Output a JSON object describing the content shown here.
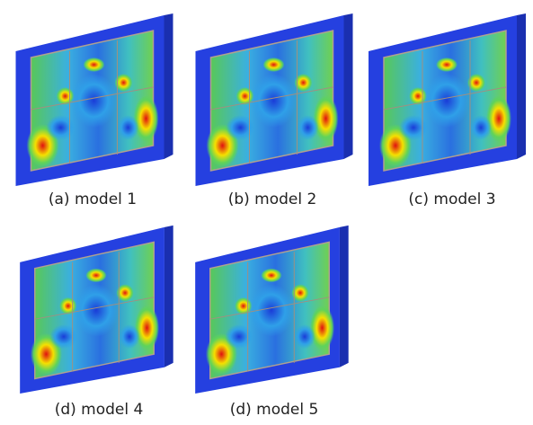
{
  "figures": [
    {
      "caption": "(a) model 1"
    },
    {
      "caption": "(b) model 2"
    },
    {
      "caption": "(c) model 3"
    },
    {
      "caption": "(d) model 4"
    },
    {
      "caption": "(d) model 5"
    }
  ]
}
